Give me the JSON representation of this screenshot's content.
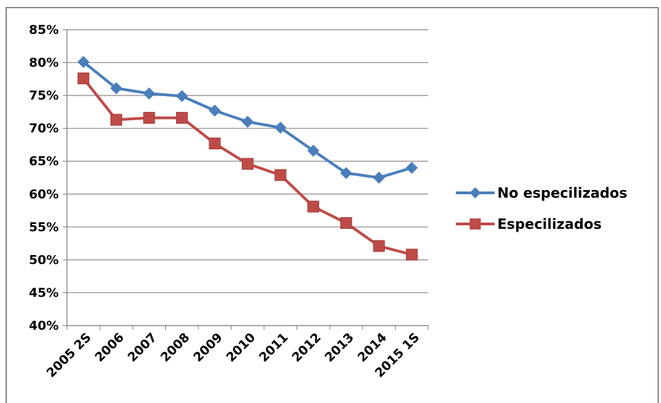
{
  "chart_data": {
    "type": "line",
    "categories": [
      "2005 2S",
      "2006",
      "2007",
      "2008",
      "2009",
      "2010",
      "2011",
      "2012",
      "2013",
      "2014",
      "2015 1S"
    ],
    "series": [
      {
        "name": "No especilizados",
        "color": "#4a7ebb",
        "marker": "diamond",
        "values": [
          80.1,
          76.1,
          75.3,
          74.9,
          72.7,
          71.0,
          70.1,
          66.6,
          63.2,
          62.5,
          64.0
        ]
      },
      {
        "name": "Especilizados",
        "color": "#be4b48",
        "marker": "square",
        "values": [
          77.6,
          71.3,
          71.6,
          71.6,
          67.7,
          64.6,
          62.9,
          58.1,
          55.6,
          52.1,
          50.8
        ]
      }
    ],
    "ylim": [
      40,
      85
    ],
    "y_ticks": [
      40,
      45,
      50,
      55,
      60,
      65,
      70,
      75,
      80,
      85
    ],
    "y_tick_labels": [
      "40%",
      "45%",
      "50%",
      "55%",
      "60%",
      "65%",
      "70%",
      "75%",
      "80%",
      "85%"
    ],
    "grid": true,
    "legend_position": "right",
    "title": "",
    "xlabel": "",
    "ylabel": ""
  }
}
